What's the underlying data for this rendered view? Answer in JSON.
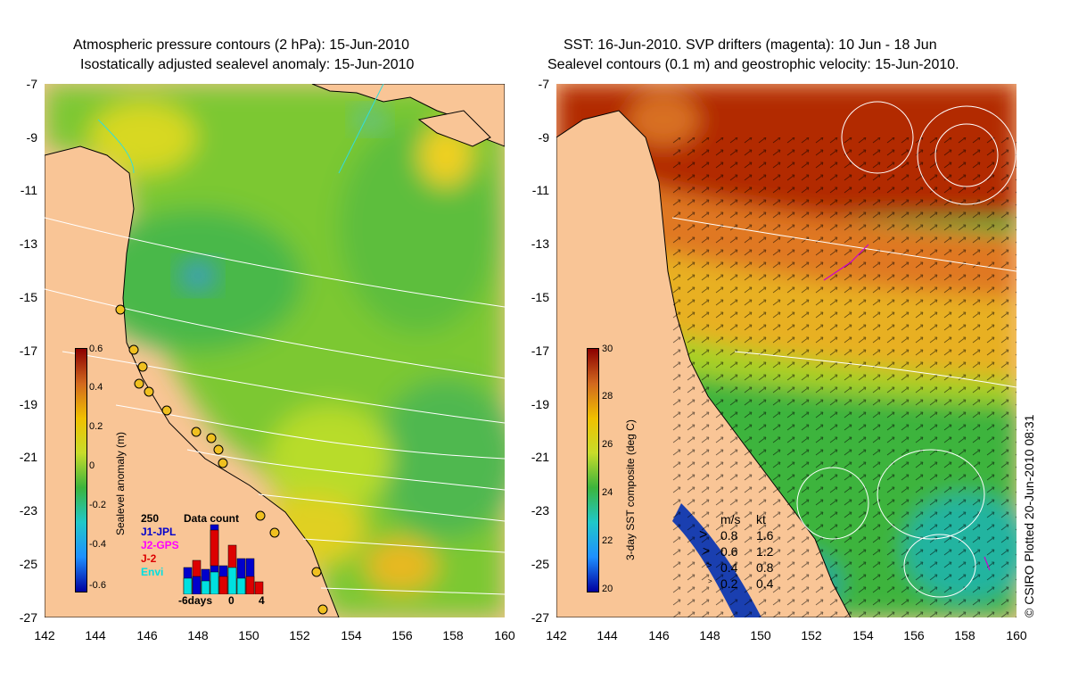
{
  "left_panel": {
    "title_line1": "Atmospheric pressure contours (2 hPa): 15-Jun-2010",
    "title_line2": "Isostatically adjusted sealevel anomaly: 15-Jun-2010",
    "colorbar_title": "Sealevel anomaly (m)",
    "colorbar_ticks": [
      "0.6",
      "0.4",
      "0.2",
      "0",
      "-0.2",
      "-0.4",
      "-0.6"
    ],
    "inset": {
      "title": "Data count",
      "ymax_label": "250",
      "legend": [
        {
          "label": "J1-JPL",
          "color": "#0000cc"
        },
        {
          "label": "J2-GPS",
          "color": "#ff00ff"
        },
        {
          "label": "J-2",
          "color": "#dd0000"
        },
        {
          "label": "Envi",
          "color": "#00e0e0"
        }
      ],
      "x_labels": [
        "-6days",
        "0",
        "4"
      ]
    }
  },
  "right_panel": {
    "title_line1": "SST: 16-Jun-2010. SVP drifters (magenta): 10 Jun - 18 Jun",
    "title_line2": "Sealevel contours (0.1 m) and geostrophic velocity: 15-Jun-2010.",
    "colorbar_title": "3-day SST composite (deg C)",
    "colorbar_ticks": [
      "30",
      "28",
      "26",
      "24",
      "22",
      "20"
    ],
    "speed_legend": {
      "header_ms": "m/s",
      "header_kt": "kt",
      "rows": [
        {
          "ms": "0.8",
          "kt": "1.6"
        },
        {
          "ms": "0.6",
          "kt": "1.2"
        },
        {
          "ms": "0.4",
          "kt": "0.8"
        },
        {
          "ms": "0.2",
          "kt": "0.4"
        }
      ]
    }
  },
  "axes": {
    "y_labels": [
      "-7",
      "-9",
      "-11",
      "-13",
      "-15",
      "-17",
      "-19",
      "-21",
      "-23",
      "-25",
      "-27"
    ],
    "x_labels": [
      "142",
      "144",
      "146",
      "148",
      "150",
      "152",
      "154",
      "156",
      "158",
      "160"
    ]
  },
  "credit": "© CSIRO Plotted 20-Jun-2010 08:31",
  "colors": {
    "land": "#f9c596",
    "coast": "#000000",
    "contour": "#ffffff",
    "drifter": "#cc00cc"
  }
}
